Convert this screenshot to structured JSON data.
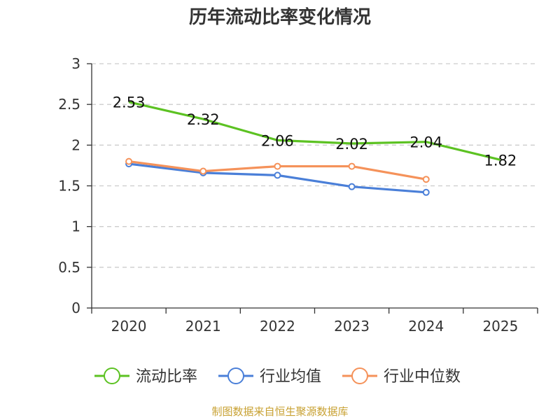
{
  "chart_data": {
    "type": "line",
    "title": "历年流动比率变化情况",
    "categories": [
      "2020",
      "2021",
      "2022",
      "2023",
      "2024",
      "2025"
    ],
    "ylim": [
      0,
      3
    ],
    "yticks": [
      "0",
      "0.5",
      "1",
      "1.5",
      "2",
      "2.5",
      "3"
    ],
    "grid": true,
    "legend_position": "bottom",
    "series": [
      {
        "name": "流动比率",
        "color": "#5cc222",
        "values": [
          2.53,
          2.32,
          2.06,
          2.02,
          2.04,
          1.82
        ],
        "labels": [
          "2.53",
          "2.32",
          "2.06",
          "2.02",
          "2.04",
          "1.82"
        ],
        "show_labels": true,
        "show_markers": false
      },
      {
        "name": "行业均值",
        "color": "#4a7fd8",
        "values": [
          1.77,
          1.66,
          1.63,
          1.49,
          1.42,
          null
        ],
        "show_labels": false,
        "show_markers": true
      },
      {
        "name": "行业中位数",
        "color": "#f5925a",
        "values": [
          1.8,
          1.68,
          1.74,
          1.74,
          1.58,
          null
        ],
        "show_labels": false,
        "show_markers": true
      }
    ]
  },
  "source_note": "制图数据来自恒生聚源数据库"
}
